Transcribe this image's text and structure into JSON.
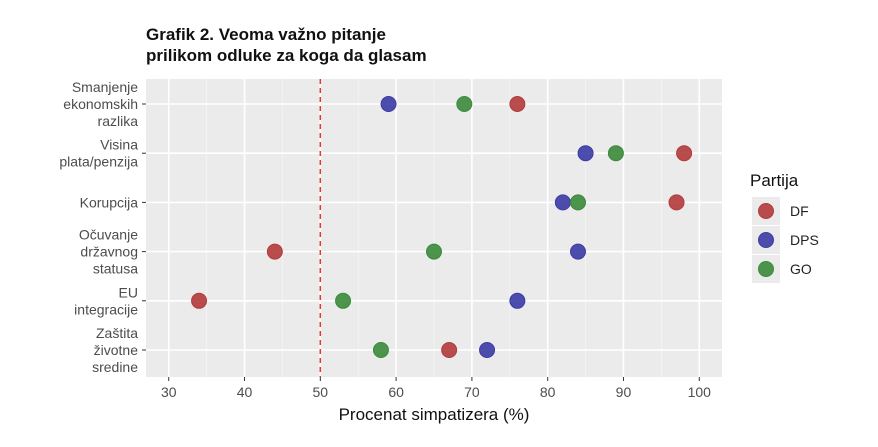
{
  "chart_data": {
    "type": "scatter",
    "title": [
      "Grafik 2. Veoma važno pitanje",
      "prilikom odluke za koga da glasam"
    ],
    "xlabel": "Procenat simpatizera (%)",
    "ylabel": "",
    "xlim": [
      27,
      103
    ],
    "xticks": [
      30,
      40,
      50,
      60,
      70,
      80,
      90,
      100
    ],
    "reference_line": {
      "x": 50,
      "style": "dashed",
      "color": "#e03c31"
    },
    "grid": true,
    "categories": [
      {
        "lines": [
          "Smanjenje",
          "ekonomskih",
          "razlika"
        ]
      },
      {
        "lines": [
          "Visina",
          "plata/penzija"
        ]
      },
      {
        "lines": [
          "Korupcija"
        ]
      },
      {
        "lines": [
          "Očuvanje",
          "državnog",
          "statusa"
        ]
      },
      {
        "lines": [
          "EU",
          "integracije"
        ]
      },
      {
        "lines": [
          "Zaštita",
          "životne",
          "sredine"
        ]
      }
    ],
    "series": [
      {
        "name": "DF",
        "color": "#b33b3b",
        "values": [
          76,
          98,
          97,
          44,
          34,
          67
        ]
      },
      {
        "name": "DPS",
        "color": "#3b3ba6",
        "values": [
          59,
          85,
          82,
          84,
          76,
          72
        ]
      },
      {
        "name": "GO",
        "color": "#3b8a3b",
        "values": [
          69,
          89,
          84,
          65,
          53,
          58
        ]
      }
    ],
    "legend": {
      "title": "Partija",
      "position": "right"
    }
  }
}
